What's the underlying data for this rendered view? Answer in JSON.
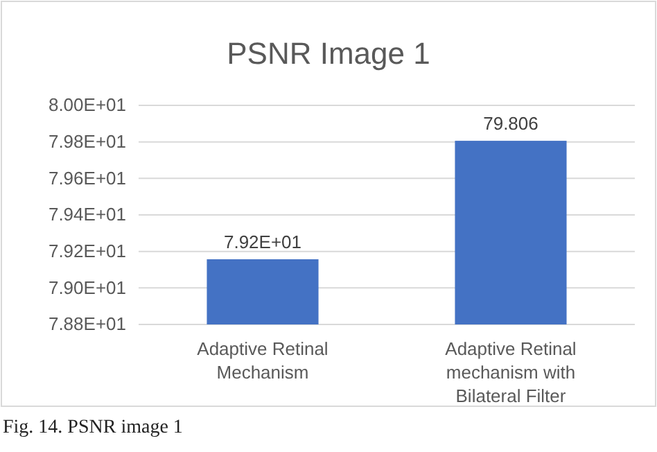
{
  "chart_data": {
    "type": "bar",
    "title": "PSNR Image 1",
    "categories": [
      "Adaptive Retinal Mechanism",
      "Adaptive Retinal mechanism with Bilateral Filter"
    ],
    "values": [
      79.157,
      79.806
    ],
    "color": "#4472c4",
    "value_labels": [
      "7.92E+01",
      "79.806"
    ],
    "ylim": [
      78.8,
      80.0
    ],
    "yticks": [
      {
        "value": 78.8,
        "label": "7.88E+01"
      },
      {
        "value": 79.0,
        "label": "7.90E+01"
      },
      {
        "value": 79.2,
        "label": "7.92E+01"
      },
      {
        "value": 79.4,
        "label": "7.94E+01"
      },
      {
        "value": 79.6,
        "label": "7.96E+01"
      },
      {
        "value": 79.8,
        "label": "7.98E+01"
      },
      {
        "value": 80.0,
        "label": "8.00E+01"
      }
    ],
    "grid": true,
    "annotations": [
      "Fig. 14. PSNR image 1"
    ]
  }
}
